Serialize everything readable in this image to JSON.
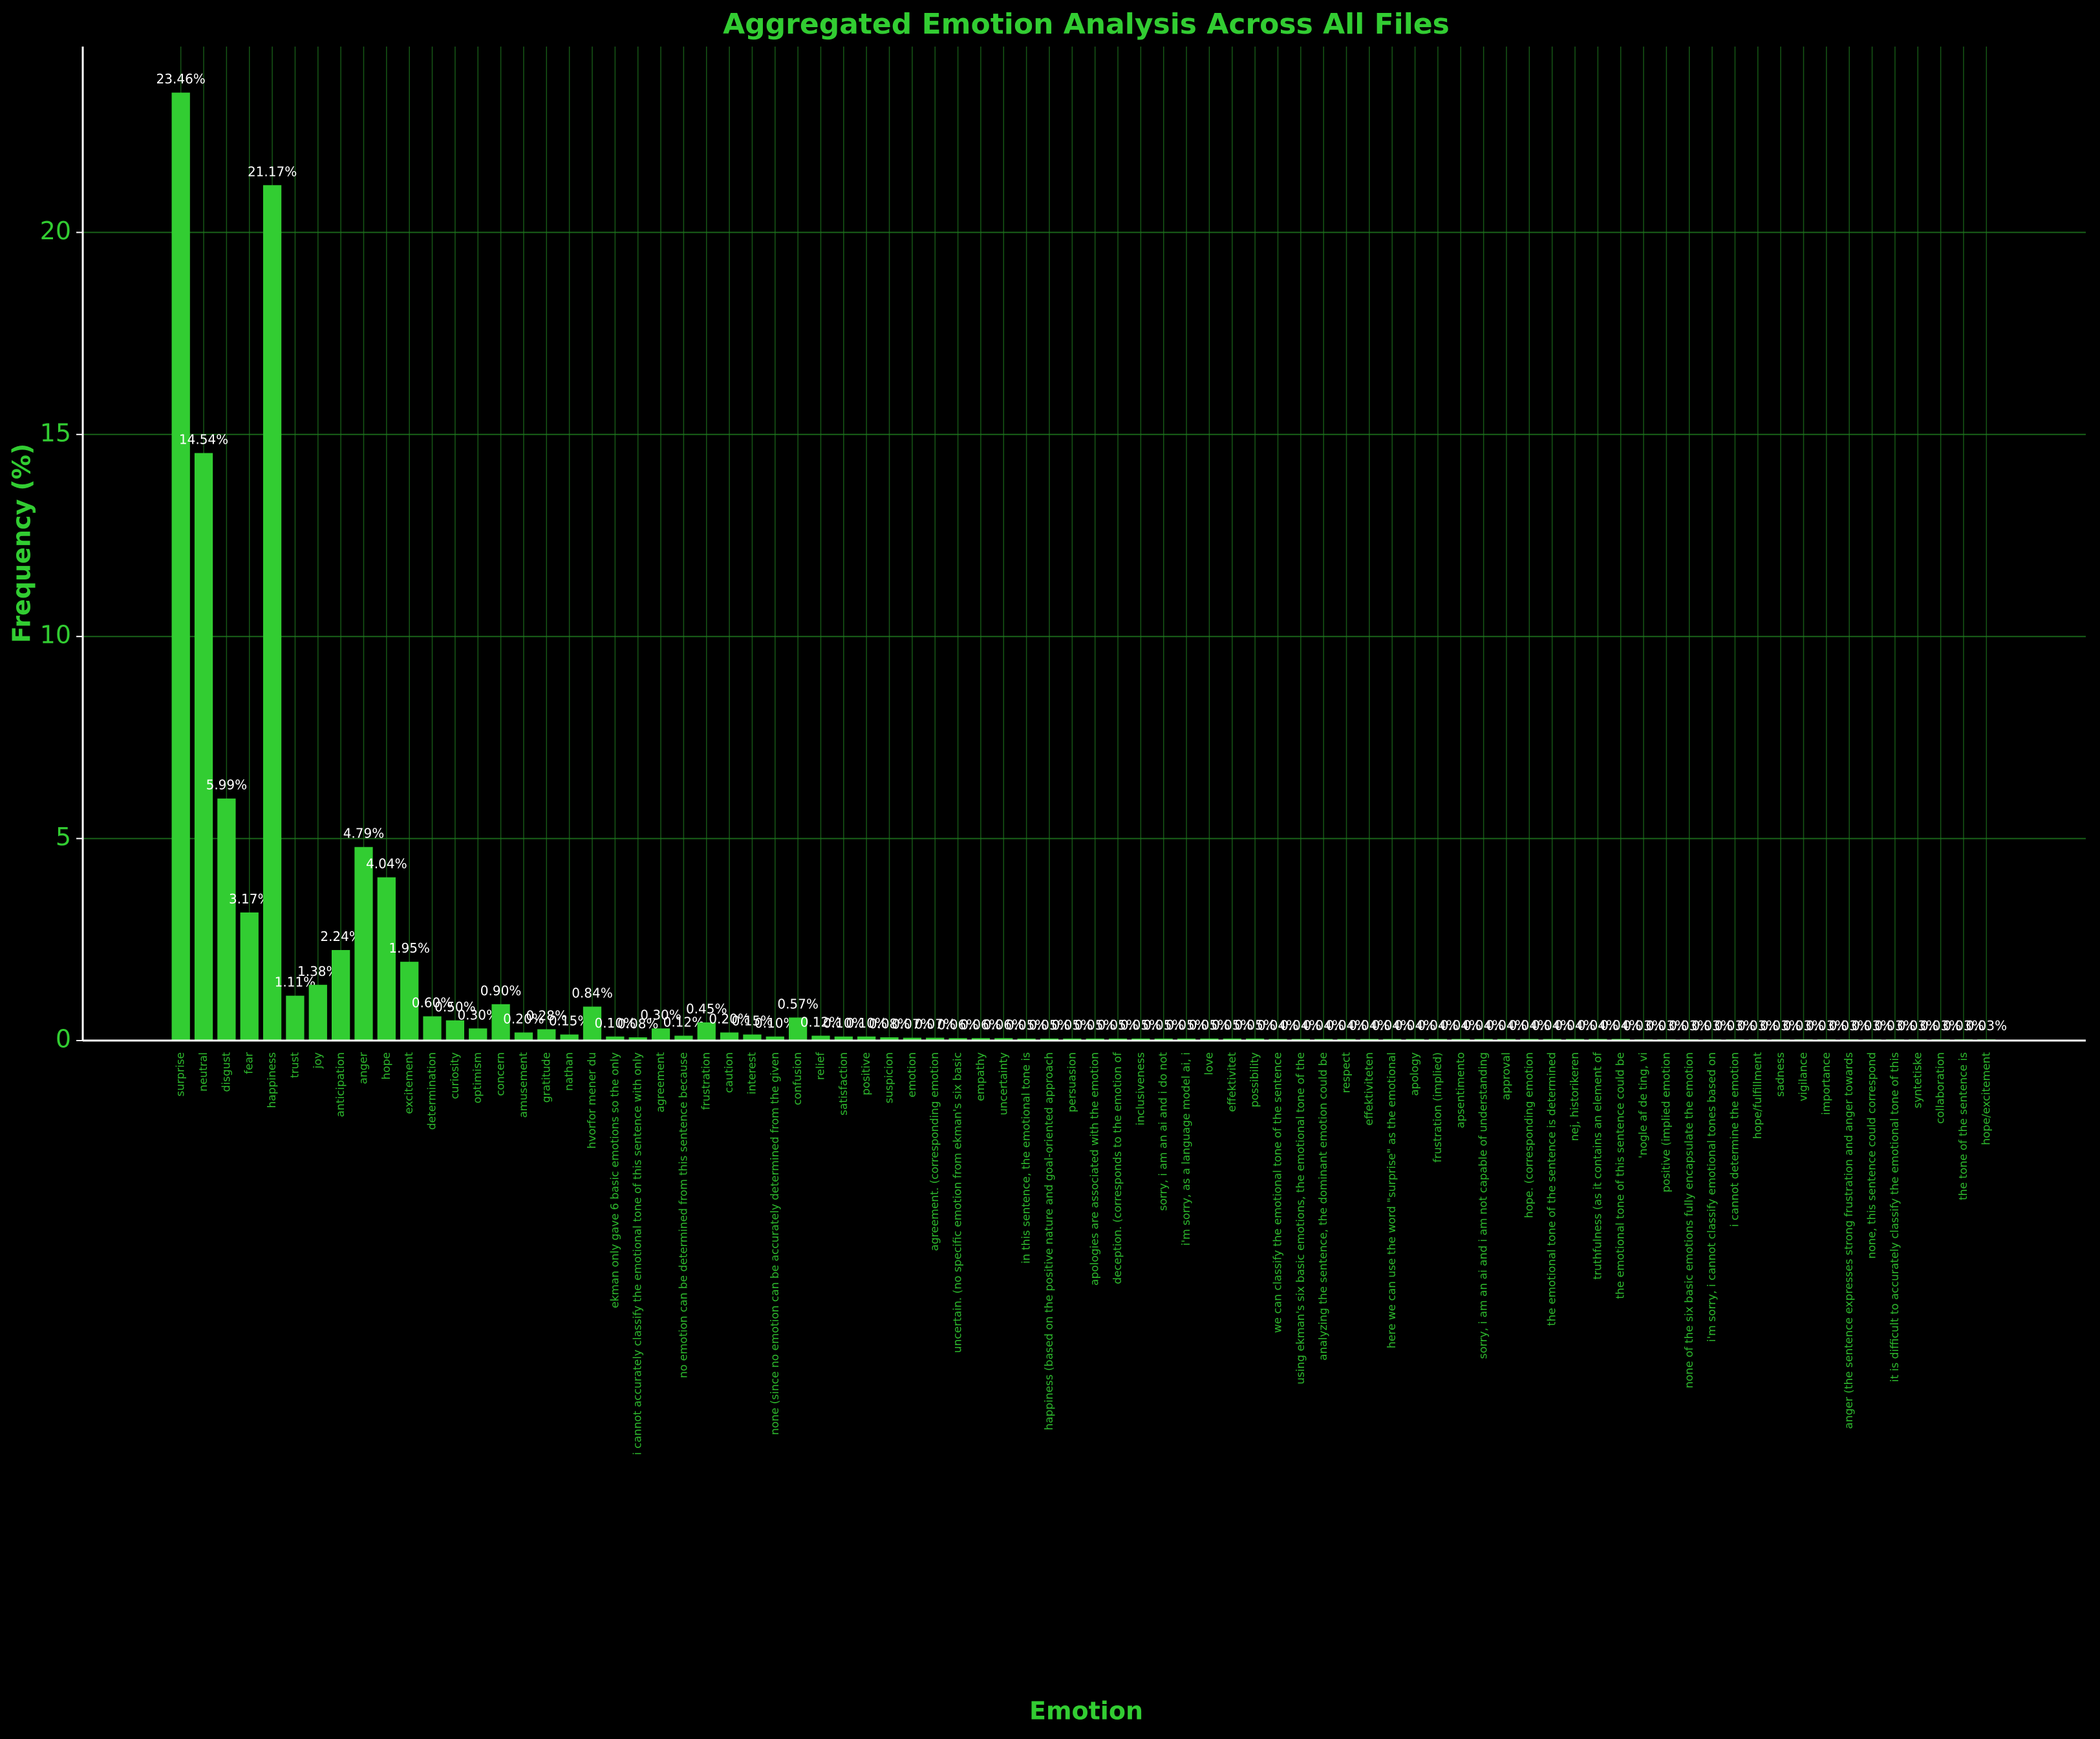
{
  "chart_data": {
    "type": "bar",
    "title": "Aggregated Emotion Analysis Across All Files",
    "xlabel": "Emotion",
    "ylabel": "Frequency (%)",
    "color": "#32cd32",
    "grid": true,
    "ylim": [
      0,
      24.6
    ],
    "yticks": [
      0,
      5,
      10,
      15,
      20
    ],
    "categories": [
      "surprise",
      "neutral",
      "disgust",
      "fear",
      "happiness",
      "trust",
      "joy",
      "anticipation",
      "anger",
      "hope",
      "excitement",
      "determination",
      "curiosity",
      "optimism",
      "concern",
      "amusement",
      "gratitude",
      "nathan",
      "hvorfor mener du",
      "ekman only gave 6 basic emotions so the only",
      "i cannot accurately classify the emotional tone of this sentence with only",
      "agreement",
      "no emotion can be determined from this sentence because",
      "frustration",
      "caution",
      "interest",
      "none (since no emotion can be accurately determined from the given",
      "confusion",
      "relief",
      "satisfaction",
      "positive",
      "suspicion",
      "emotion",
      "agreement. (corresponding emotion",
      "uncertain. (no specific emotion from ekman's six basic",
      "empathy",
      "uncertainty",
      "in this sentence, the emotional tone is",
      "happiness  (based on the positive nature and goal-oriented approach",
      "persuasion",
      "apologies are associated with the emotion",
      "deception. (corresponds to the emotion of",
      "inclusiveness",
      "sorry, i am an ai and i do not",
      "i'm sorry, as a language model ai, i",
      "love",
      "effektivitet",
      "possibility",
      "we can classify the emotional tone of the sentence",
      "using ekman's six basic emotions, the emotional tone of the",
      "analyzing the sentence, the dominant emotion could be",
      "respect",
      "effektiviteten",
      "here we can use the word \"surprise\" as the emotional",
      "apology",
      "frustration (implied)",
      "apsentimento",
      "sorry, i am an ai and i am not capable of understanding",
      "approval",
      "hope. (corresponding emotion",
      "the emotional tone of the sentence is determined",
      "nej, historikeren",
      "truthfulness (as it contains an element of",
      "the emotional tone of this sentence could be",
      "'nogle af de ting, vi",
      "positive (implied emotion",
      "none of the six basic emotions fully encapsulate the emotion",
      "i'm sorry, i cannot classify emotional tones based on",
      "i cannot determine the emotion",
      "hope/fulfillment",
      "sadness",
      "vigilance",
      "importance",
      "anger (the sentence expresses strong frustration and anger towards",
      "none, this sentence could correspond",
      "it is difficult to accurately classify the emotional tone of this",
      "syntetiske",
      "collaboration",
      "the tone of the sentence is",
      "hope/excitement"
    ],
    "values": [
      23.46,
      14.54,
      5.99,
      3.17,
      21.17,
      1.11,
      1.38,
      2.24,
      4.79,
      4.04,
      1.95,
      0.6,
      0.5,
      0.3,
      0.9,
      0.2,
      0.28,
      0.15,
      0.84,
      0.1,
      0.08,
      0.3,
      0.12,
      0.45,
      0.2,
      0.15,
      0.1,
      0.57,
      0.12,
      0.1,
      0.1,
      0.08,
      0.07,
      0.07,
      0.06,
      0.06,
      0.06,
      0.05,
      0.05,
      0.05,
      0.05,
      0.05,
      0.05,
      0.05,
      0.05,
      0.05,
      0.05,
      0.05,
      0.04,
      0.04,
      0.04,
      0.04,
      0.04,
      0.04,
      0.04,
      0.04,
      0.04,
      0.04,
      0.04,
      0.04,
      0.04,
      0.04,
      0.04,
      0.04,
      0.03,
      0.03,
      0.03,
      0.03,
      0.03,
      0.03,
      0.03,
      0.03,
      0.03,
      0.03,
      0.03,
      0.03,
      0.03,
      0.03,
      0.03,
      0.03
    ],
    "value_labels": [
      "23.46%",
      "14.54%",
      "5.99%",
      "3.17%",
      "21.17%",
      "1.11%",
      "1.38%",
      "2.24%",
      "4.79%",
      "4.04%",
      "1.95%",
      "0.60%",
      "0.50%",
      "0.30%",
      "0.90%",
      "0.20%",
      "0.28%",
      "0.15%",
      "0.84%",
      "0.10%",
      "0.08%",
      "0.30%",
      "0.12%",
      "0.45%",
      "0.20%",
      "0.15%",
      "0.10%",
      "0.57%",
      "0.12%",
      "0.10%",
      "0.10%",
      "0.08%",
      "0.07%",
      "0.07%",
      "0.06%",
      "0.06%",
      "0.06%",
      "0.05%",
      "0.05%",
      "0.05%",
      "0.05%",
      "0.05%",
      "0.05%",
      "0.05%",
      "0.05%",
      "0.05%",
      "0.05%",
      "0.05%",
      "0.04%",
      "0.04%",
      "0.04%",
      "0.04%",
      "0.04%",
      "0.04%",
      "0.04%",
      "0.04%",
      "0.04%",
      "0.04%",
      "0.04%",
      "0.04%",
      "0.04%",
      "0.04%",
      "0.04%",
      "0.04%",
      "0.03%",
      "0.03%",
      "0.03%",
      "0.03%",
      "0.03%",
      "0.03%",
      "0.03%",
      "0.03%",
      "0.03%",
      "0.03%",
      "0.03%",
      "0.03%",
      "0.03%",
      "0.03%",
      "0.03%",
      "0.03%"
    ]
  }
}
